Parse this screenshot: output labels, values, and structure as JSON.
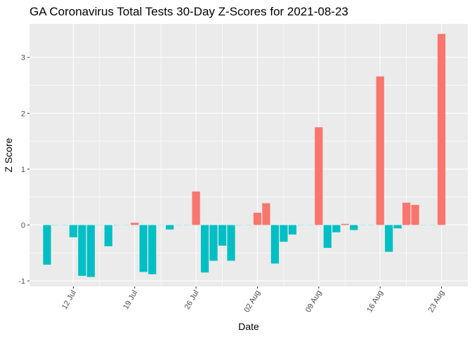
{
  "chart_data": {
    "type": "bar",
    "title": "GA Coronavirus Total Tests 30-Day Z-Scores for 2021-08-23",
    "xlabel": "Date",
    "ylabel": "Z Score",
    "ylim": [
      -1.1,
      3.6
    ],
    "yticks": [
      -1,
      0,
      1,
      2,
      3
    ],
    "y_tick_labels": [
      "-1",
      "0",
      "1",
      "2",
      "3"
    ],
    "x_tick_dates": [
      "2021-07-12",
      "2021-07-19",
      "2021-07-26",
      "2021-08-02",
      "2021-08-09",
      "2021-08-16",
      "2021-08-23"
    ],
    "x_tick_labels": [
      "12 Jul",
      "19 Jul",
      "26 Jul",
      "02 Aug",
      "09 Aug",
      "16 Aug",
      "23 Aug"
    ],
    "xlim": [
      "2021-07-07",
      "2021-08-26"
    ],
    "grid": true,
    "legend": "none",
    "colors": {
      "positive": "#F8766D",
      "negative": "#00BFC4",
      "panel": "#EBEBEB",
      "grid": "#FFFFFF"
    },
    "x": [
      "2021-07-09",
      "2021-07-10",
      "2021-07-11",
      "2021-07-12",
      "2021-07-13",
      "2021-07-14",
      "2021-07-15",
      "2021-07-16",
      "2021-07-17",
      "2021-07-18",
      "2021-07-19",
      "2021-07-20",
      "2021-07-21",
      "2021-07-22",
      "2021-07-23",
      "2021-07-24",
      "2021-07-25",
      "2021-07-26",
      "2021-07-27",
      "2021-07-28",
      "2021-07-29",
      "2021-07-30",
      "2021-07-31",
      "2021-08-01",
      "2021-08-02",
      "2021-08-03",
      "2021-08-04",
      "2021-08-05",
      "2021-08-06",
      "2021-08-07",
      "2021-08-08",
      "2021-08-09",
      "2021-08-10",
      "2021-08-11",
      "2021-08-12",
      "2021-08-13",
      "2021-08-14",
      "2021-08-15",
      "2021-08-16",
      "2021-08-17",
      "2021-08-18",
      "2021-08-19",
      "2021-08-20",
      "2021-08-21",
      "2021-08-22",
      "2021-08-23"
    ],
    "values": [
      -0.71,
      0,
      0,
      -0.22,
      -0.91,
      -0.93,
      0,
      -0.38,
      0,
      0,
      0.04,
      -0.84,
      -0.88,
      0,
      -0.08,
      0,
      0,
      0.6,
      -0.85,
      -0.64,
      -0.37,
      -0.64,
      0,
      0,
      0.22,
      0.39,
      -0.69,
      -0.3,
      -0.17,
      0,
      0,
      1.75,
      -0.41,
      -0.13,
      0.02,
      -0.09,
      0,
      0,
      2.66,
      -0.48,
      -0.06,
      0.4,
      0.36,
      0,
      0,
      3.42
    ]
  }
}
